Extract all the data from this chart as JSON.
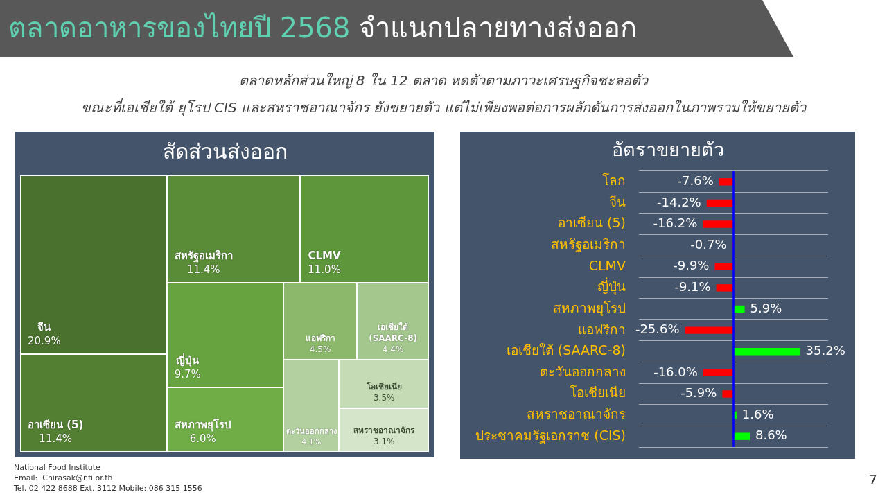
{
  "chart_data": [
    {
      "type": "other",
      "title": "ตลาดอาหารของไทยปี 2568 จำแนกปลายทางส่งออก",
      "subtitle": "ตลาดหลักส่วนใหญ่ 8 ใน 12 ตลาด หดตัวตามภาวะเศรษฐกิจชะลอตัว\nขณะที่เอเชียใต้ ยุโรป CIS และสหราชอาณาจักร ยังขยายตัว แต่ไม่เพียงพอต่อการผลักดันการส่งออกในภาพรวมให้ขยายตัว",
      "annotations": [
        "National Food Institute",
        "Email:  Chirasak@nfi.or.th",
        "Tel. 02 422 8688 Ext. 3112 Mobile: 086 315 1556",
        "7"
      ]
    },
    {
      "type": "other",
      "title": "สัดส่วนส่งออก",
      "categories": [
        "จีน",
        "อาเซียน (5)",
        "สหรัฐอเมริกา",
        "CLMV",
        "ญี่ปุ่น",
        "สหภาพยุโรป",
        "แอฟริกา",
        "เอเชียใต้ (SAARC-8)",
        "ตะวันออกกลาง",
        "โอเชียเนีย",
        "สหราชอาณาจักร"
      ],
      "values": [
        20.9,
        11.4,
        11.4,
        11.0,
        9.7,
        6.0,
        4.5,
        4.4,
        4.1,
        3.5,
        3.1
      ],
      "value_labels": [
        "20.9%",
        "11.4%",
        "11.4%",
        "11.0%",
        "9.7%",
        "6.0%",
        "4.5%",
        "4.4%",
        "4.1%",
        "3.5%",
        "3.1%"
      ],
      "colors": [
        "#4a712d",
        "#537f32",
        "#5a8c38",
        "#5e973b",
        "#67a43f",
        "#70ad47",
        "#8cb86c",
        "#a3c78d",
        "#b3d1a0",
        "#c4dbb5",
        "#d5e5ca"
      ]
    },
    {
      "type": "bar",
      "orientation": "horizontal",
      "title": "อัตราขยายตัว",
      "categories": [
        "โลก",
        "จีน",
        "อาเซียน (5)",
        "สหรัฐอเมริกา",
        "CLMV",
        "ญี่ปุ่น",
        "สหภาพยุโรป",
        "แอฟริกา",
        "เอเชียใต้ (SAARC-8)",
        "ตะวันออกกลาง",
        "โอเชียเนีย",
        "สหราชอาณาจักร",
        "ประชาคมรัฐเอกราช (CIS)"
      ],
      "values": [
        -7.6,
        -14.2,
        -16.2,
        -0.7,
        -9.9,
        -9.1,
        5.9,
        -25.6,
        35.2,
        -16.0,
        -5.9,
        1.6,
        8.6
      ],
      "value_labels": [
        "-7.6%",
        "-14.2%",
        "-16.2%",
        "-0.7%",
        "-9.9%",
        "-9.1%",
        "5.9%",
        "-25.6%",
        "35.2%",
        "-16.0%",
        "-5.9%",
        "1.6%",
        "8.6%"
      ],
      "colors": [
        "#ff0000",
        "#ff0000",
        "#ff0000",
        "#ff0000",
        "#ff0000",
        "#ff0000",
        "#00ff00",
        "#ff0000",
        "#00ff00",
        "#ff0000",
        "#ff0000",
        "#00ff00",
        "#00ff00"
      ],
      "xlim": [
        -50,
        50
      ],
      "grid": "y",
      "tick_labels": "y",
      "ref_lines": [
        {
          "axis": "x",
          "value": 0,
          "color": "#0000ff"
        }
      ]
    }
  ]
}
